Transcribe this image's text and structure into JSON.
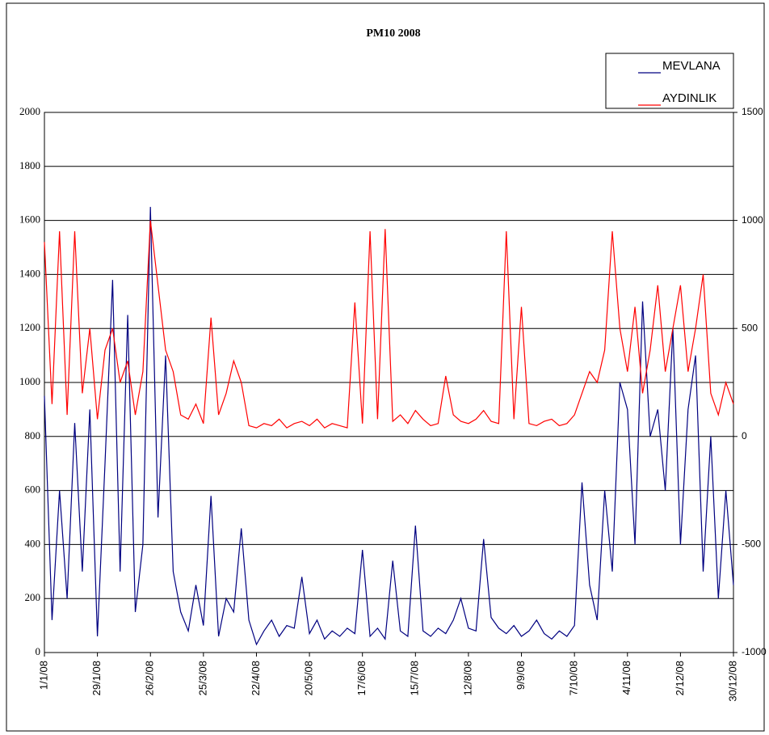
{
  "chart_data": {
    "type": "line",
    "title": "PM10 2008",
    "categories": [
      "1/1/08",
      null,
      null,
      null,
      null,
      null,
      null,
      "29/1/08",
      null,
      null,
      null,
      null,
      null,
      null,
      "26/2/08",
      null,
      null,
      null,
      null,
      null,
      null,
      "25/3/08",
      null,
      null,
      null,
      null,
      null,
      null,
      "22/4/08",
      null,
      null,
      null,
      null,
      null,
      null,
      "20/5/08",
      null,
      null,
      null,
      null,
      null,
      null,
      "17/6/08",
      null,
      null,
      null,
      null,
      null,
      null,
      "15/7/08",
      null,
      null,
      null,
      null,
      null,
      null,
      "12/8/08",
      null,
      null,
      null,
      null,
      null,
      null,
      "9/9/08",
      null,
      null,
      null,
      null,
      null,
      null,
      "7/10/08",
      null,
      null,
      null,
      null,
      null,
      null,
      "4/11/08",
      null,
      null,
      null,
      null,
      null,
      null,
      "2/12/08",
      null,
      null,
      null,
      null,
      null,
      null,
      "30/12/08"
    ],
    "series": [
      {
        "name": "MEVLANA",
        "color": "#000080",
        "values": [
          950,
          120,
          600,
          200,
          850,
          300,
          900,
          60,
          700,
          1380,
          300,
          1250,
          150,
          400,
          1650,
          500,
          1100,
          300,
          150,
          80,
          250,
          100,
          580,
          60,
          200,
          150,
          460,
          120,
          30,
          80,
          120,
          60,
          100,
          90,
          280,
          70,
          120,
          50,
          80,
          60,
          90,
          70,
          380,
          60,
          90,
          50,
          340,
          80,
          60,
          470,
          80,
          60,
          90,
          70,
          120,
          200,
          90,
          80,
          420,
          130,
          90,
          70,
          100,
          60,
          80,
          120,
          70,
          50,
          80,
          60,
          100,
          630,
          250,
          120,
          600,
          300,
          1000,
          900,
          400,
          1300,
          800,
          900,
          600,
          1200,
          400,
          900,
          1100,
          300,
          800,
          200,
          600,
          250
        ]
      },
      {
        "name": "AYDINLIK",
        "color": "#ff0000",
        "axis": "y2",
        "values": [
          900,
          150,
          950,
          100,
          950,
          200,
          500,
          80,
          400,
          500,
          250,
          350,
          100,
          300,
          1000,
          700,
          400,
          300,
          100,
          80,
          150,
          60,
          550,
          100,
          200,
          350,
          250,
          50,
          40,
          60,
          50,
          80,
          40,
          60,
          70,
          50,
          80,
          40,
          60,
          50,
          40,
          620,
          60,
          950,
          80,
          960,
          70,
          100,
          60,
          120,
          80,
          50,
          60,
          280,
          100,
          70,
          60,
          80,
          120,
          70,
          60,
          950,
          80,
          600,
          60,
          50,
          70,
          80,
          50,
          60,
          100,
          200,
          300,
          250,
          400,
          950,
          500,
          300,
          600,
          200,
          400,
          700,
          300,
          500,
          700,
          300,
          500,
          750,
          200,
          100,
          250,
          150
        ]
      }
    ],
    "ylim": [
      0,
      2000
    ],
    "yticks": [
      0,
      200,
      400,
      600,
      800,
      1000,
      1200,
      1400,
      1600,
      1800,
      2000
    ],
    "y2lim": [
      -1000,
      1500
    ],
    "y2ticks": [
      -1000,
      -500,
      0,
      500,
      1000,
      1500
    ],
    "grid": true,
    "legend": "top-right"
  }
}
